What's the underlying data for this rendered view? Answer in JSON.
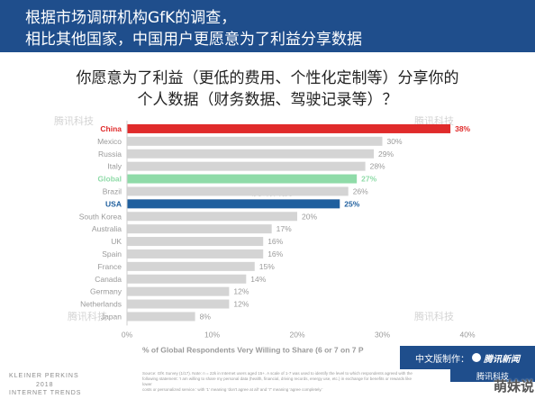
{
  "header": {
    "line1": "根据市场调研机构GfK的调查，",
    "line2": "相比其他国家，中国用户更愿意为了利益分享数据"
  },
  "question": {
    "line1": "你愿意为了利益（更低的费用、个性化定制等）分享你的",
    "line2": "个人数据（财务数据、驾驶记录等）？"
  },
  "colors": {
    "header_bg": "#1f4e8c",
    "default_bar": "#d4d4d4",
    "china": "#e02b2b",
    "global": "#8fdba8",
    "usa": "#1f5f9e"
  },
  "chart_data": {
    "type": "bar",
    "orientation": "horizontal",
    "categories": [
      "China",
      "Mexico",
      "Russia",
      "Italy",
      "Global",
      "Brazil",
      "USA",
      "South Korea",
      "Australia",
      "UK",
      "Spain",
      "France",
      "Canada",
      "Germany",
      "Netherlands",
      "Japan"
    ],
    "values": [
      38,
      30,
      29,
      28,
      27,
      26,
      25,
      20,
      17,
      16,
      16,
      15,
      14,
      12,
      12,
      8
    ],
    "value_labels": [
      "38%",
      "30%",
      "29%",
      "28%",
      "27%",
      "26%",
      "25%",
      "20%",
      "17%",
      "16%",
      "16%",
      "15%",
      "14%",
      "12%",
      "12%",
      "8%"
    ],
    "highlight": {
      "China": "china",
      "Global": "global",
      "USA": "usa"
    },
    "xlim": [
      0,
      40
    ],
    "x_ticks": [
      0,
      10,
      20,
      30,
      40
    ],
    "x_tick_labels": [
      "0%",
      "10%",
      "20%",
      "30%",
      "40%"
    ],
    "xlabel": "% of Global Respondents Very Willing to Share (6 or 7 on 7 P",
    "grid": false
  },
  "footer": {
    "left_line1": "KLEINER PERKINS",
    "left_line2": "2018",
    "left_line3": "INTERNET TRENDS",
    "source_line1": "Source: GfK Survey (1/17). Note: n = 22k in Internet users aged 15+. A scale of 1-7 was used to identify the level to which respondents agreed with the",
    "source_line2": "following statement: 'I am willing to share my personal data (health, financial, driving records, energy use, etc.) in exchange for benefits or rewards like lower",
    "source_line3": "costs or personalized service.' with '1' meaning 'don't agree at all' and '7' meaning 'agree completely.'",
    "credit_label": "中文版制作：",
    "credit_brand": "腾讯新闻",
    "credit_brand2": "腾讯科技",
    "stamp": "萌妹说"
  },
  "watermark": "腾讯科技"
}
